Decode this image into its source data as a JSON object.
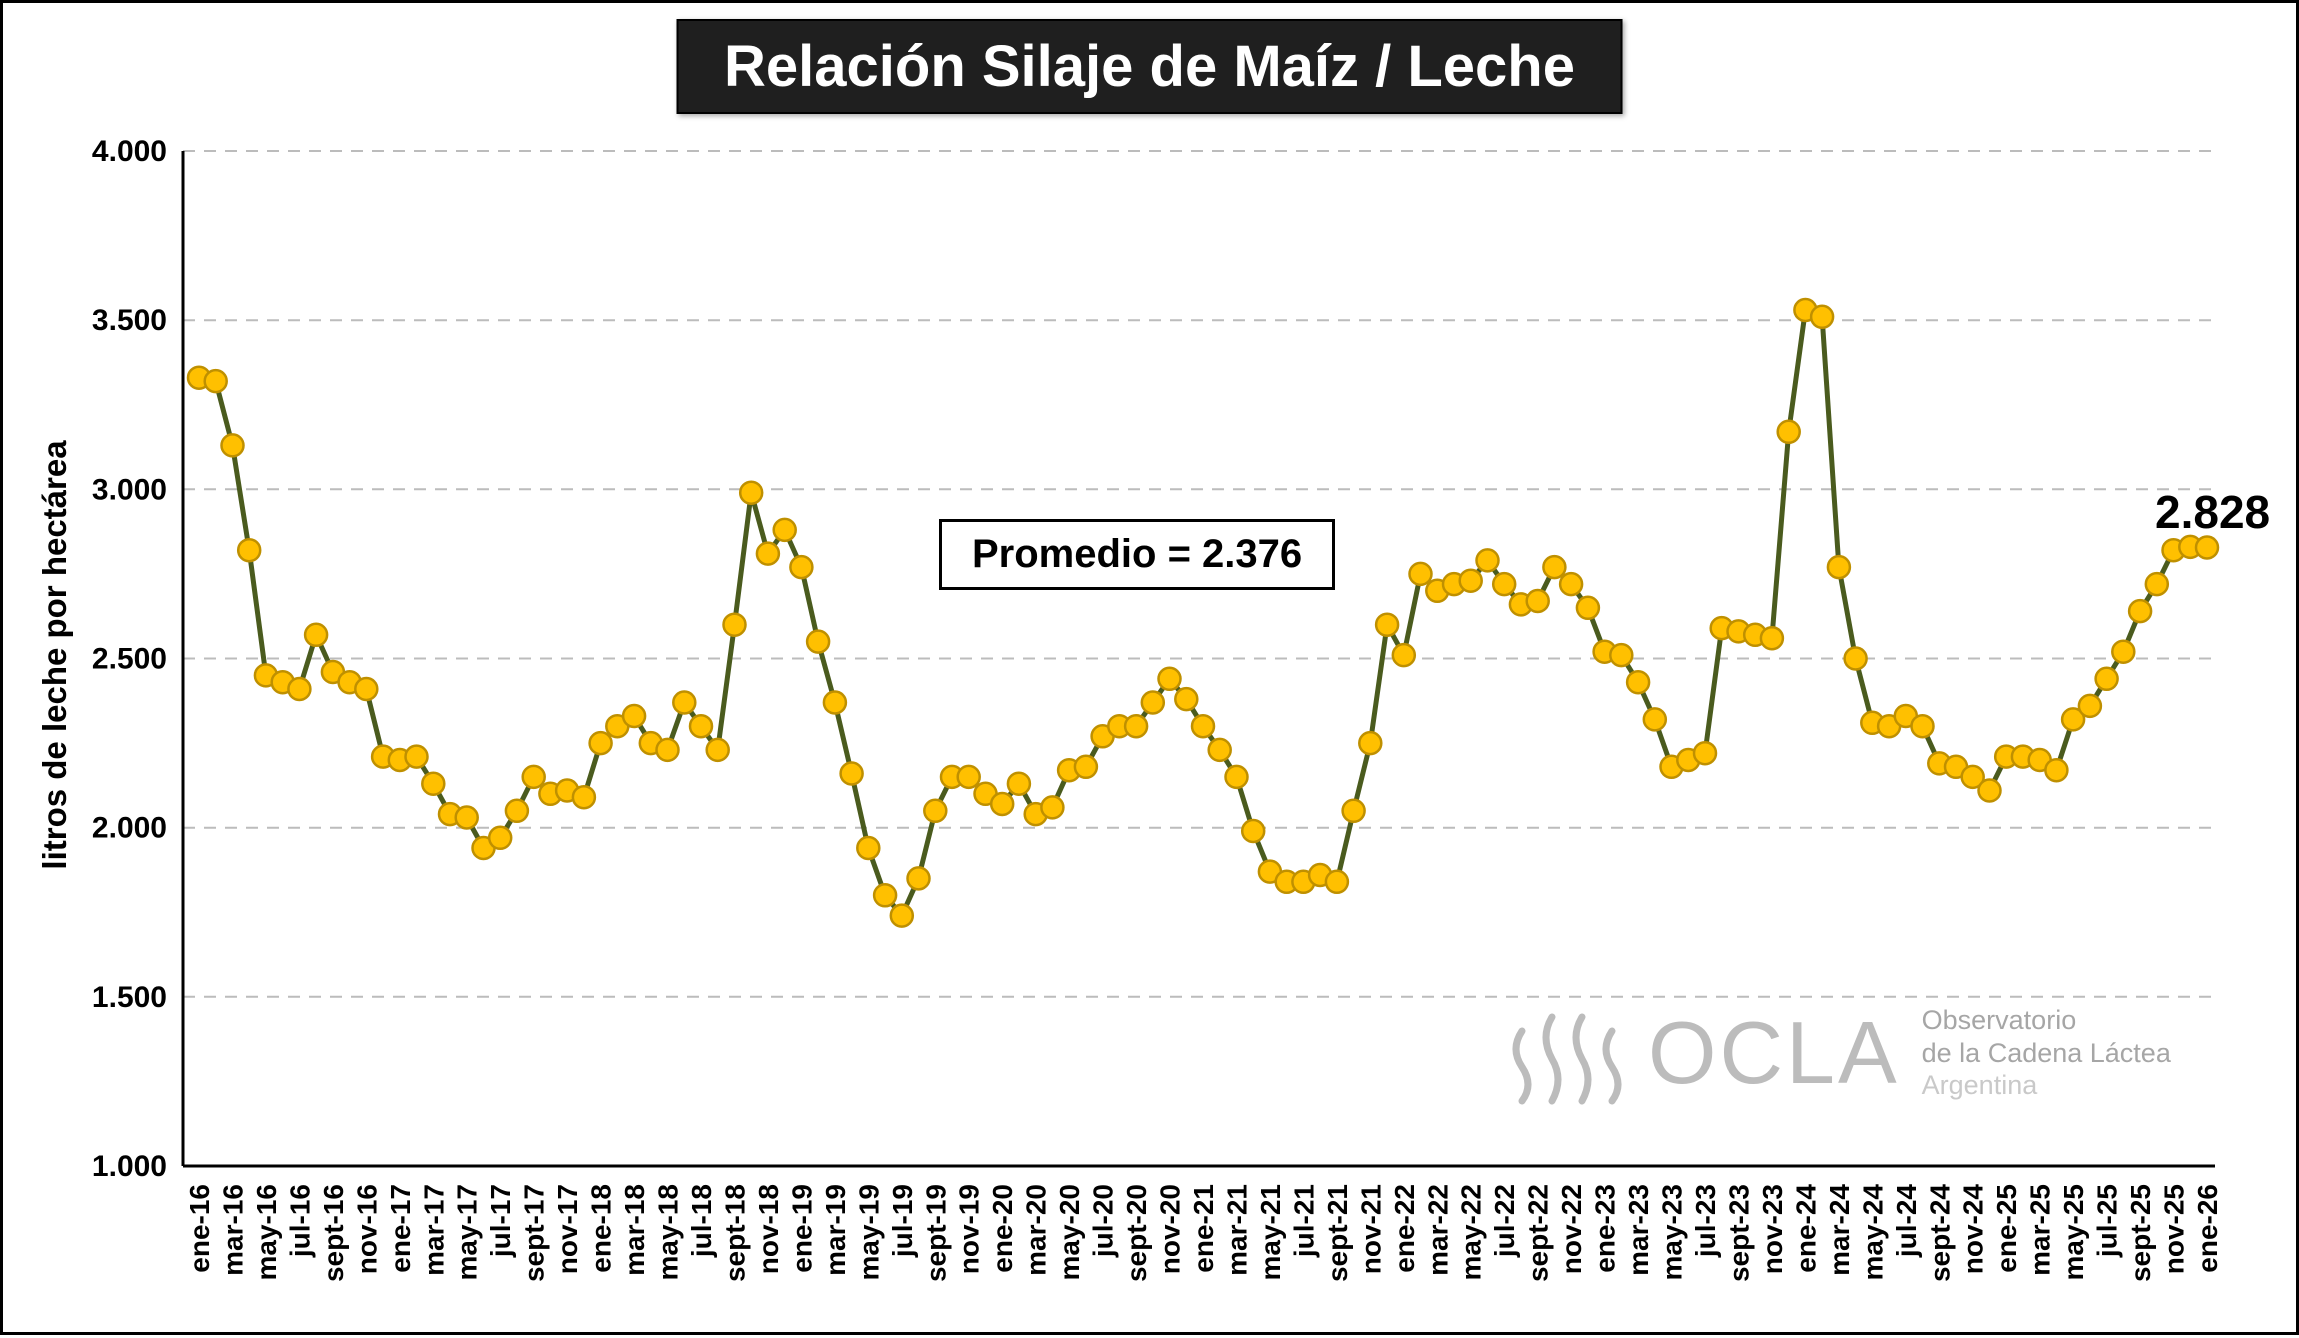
{
  "title": {
    "text": "Relación Silaje de Maíz / Leche"
  },
  "annotation": {
    "label": "Promedio = 2.376"
  },
  "end_label": "2.828",
  "y_axis_title": "litros de leche por hectárea",
  "watermark": {
    "brand": "OCLA",
    "tagline1": "Observatorio",
    "tagline2": "de la Cadena Láctea",
    "tagline3": "Argentina"
  },
  "colors": {
    "line": "#4a5b1e",
    "marker_fill": "#ffc000",
    "marker_stroke": "#bf9000",
    "grid": "#bcbcbc",
    "title_bg": "#1f1f1f"
  },
  "chart_data": {
    "type": "line",
    "title": "Relación Silaje de Maíz / Leche",
    "ylabel": "litros de leche por hectárea",
    "ylim": [
      1.0,
      4.0
    ],
    "grid": "horizontal-dashed",
    "legend": "none",
    "annotation": "Promedio = 2.376",
    "last_point_label": "2.828",
    "y_ticks": [
      {
        "value": 4.0,
        "label": "4.000"
      },
      {
        "value": 3.5,
        "label": "3.500"
      },
      {
        "value": 3.0,
        "label": "3.000"
      },
      {
        "value": 2.5,
        "label": "2.500"
      },
      {
        "value": 2.0,
        "label": "2.000"
      },
      {
        "value": 1.5,
        "label": "1.500"
      },
      {
        "value": 1.0,
        "label": "1.000"
      }
    ],
    "tick_every": 2,
    "tick_labels": [
      "ene-16",
      "mar-16",
      "may-16",
      "jul-16",
      "sept-16",
      "nov-16",
      "ene-17",
      "mar-17",
      "may-17",
      "jul-17",
      "sept-17",
      "nov-17",
      "ene-18",
      "mar-18",
      "may-18",
      "jul-18",
      "sept-18",
      "nov-18",
      "ene-19",
      "mar-19",
      "may-19",
      "jul-19",
      "sept-19",
      "nov-19",
      "ene-20",
      "mar-20",
      "may-20",
      "jul-20",
      "sept-20",
      "nov-20",
      "ene-21",
      "mar-21",
      "may-21",
      "jul-21",
      "sept-21",
      "nov-21",
      "ene-22",
      "mar-22",
      "may-22",
      "jul-22",
      "sept-22",
      "nov-22",
      "ene-23",
      "mar-23",
      "may-23",
      "jul-23",
      "sept-23",
      "nov-23",
      "ene-24",
      "mar-24",
      "may-24",
      "jul-24",
      "sept-24",
      "nov-24",
      "ene-25",
      "mar-25",
      "may-25",
      "jul-25",
      "sept-25",
      "nov-25",
      "ene-26"
    ],
    "values": [
      3.33,
      3.32,
      3.13,
      2.82,
      2.45,
      2.43,
      2.41,
      2.57,
      2.46,
      2.43,
      2.41,
      2.21,
      2.2,
      2.21,
      2.13,
      2.04,
      2.03,
      1.94,
      1.97,
      2.05,
      2.15,
      2.1,
      2.11,
      2.09,
      2.25,
      2.3,
      2.33,
      2.25,
      2.23,
      2.37,
      2.3,
      2.23,
      2.6,
      2.99,
      2.81,
      2.88,
      2.77,
      2.55,
      2.37,
      2.16,
      1.94,
      1.8,
      1.74,
      1.85,
      2.05,
      2.15,
      2.15,
      2.1,
      2.07,
      2.13,
      2.04,
      2.06,
      2.17,
      2.18,
      2.27,
      2.3,
      2.3,
      2.37,
      2.44,
      2.38,
      2.3,
      2.23,
      2.15,
      1.99,
      1.87,
      1.84,
      1.84,
      1.86,
      1.84,
      2.05,
      2.25,
      2.6,
      2.51,
      2.75,
      2.7,
      2.72,
      2.73,
      2.79,
      2.72,
      2.66,
      2.67,
      2.77,
      2.72,
      2.65,
      2.52,
      2.51,
      2.43,
      2.32,
      2.18,
      2.2,
      2.22,
      2.59,
      2.58,
      2.57,
      2.56,
      3.17,
      3.53,
      3.51,
      2.77,
      2.5,
      2.31,
      2.3,
      2.33,
      2.3,
      2.19,
      2.18,
      2.15,
      2.11,
      2.21,
      2.21,
      2.2,
      2.17,
      2.32,
      2.36,
      2.44,
      2.52,
      2.64,
      2.72,
      2.82,
      2.83,
      2.828
    ]
  }
}
